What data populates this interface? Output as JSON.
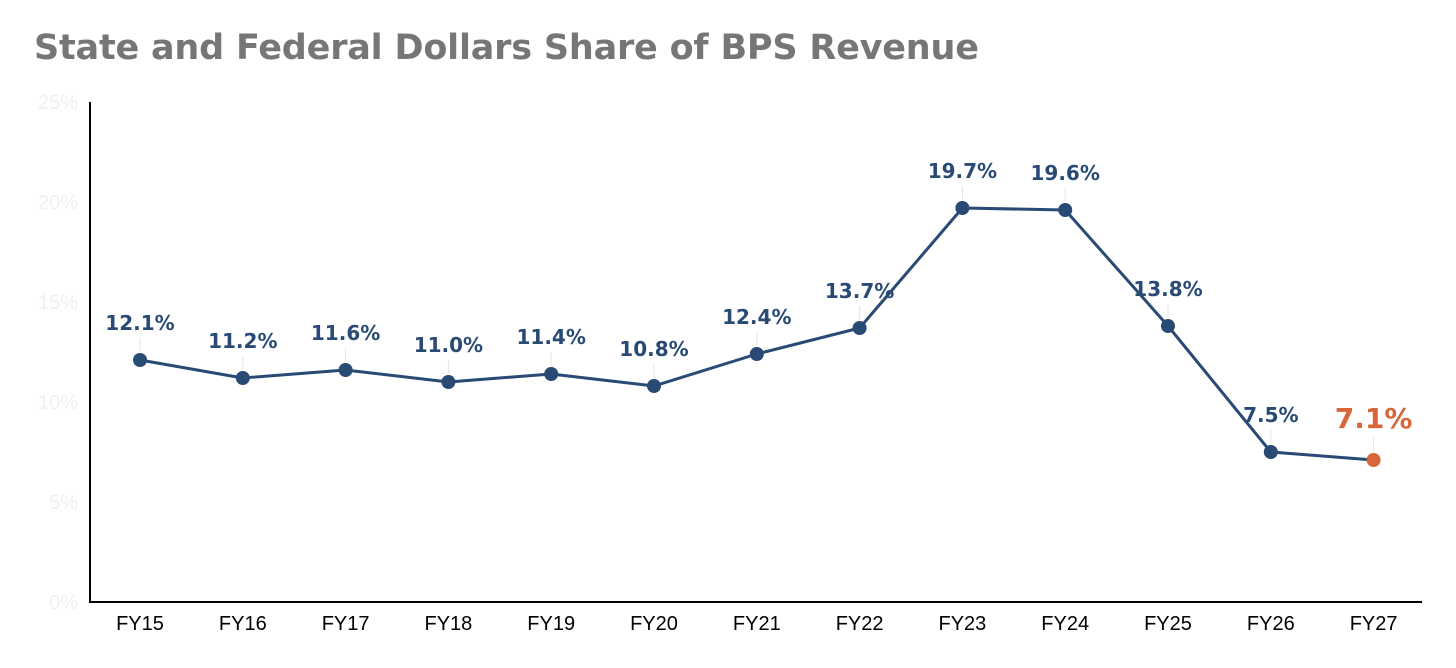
{
  "chart_data": {
    "type": "line",
    "title": "State and Federal Dollars Share of BPS Revenue",
    "xlabel": "",
    "ylabel": "",
    "categories": [
      "FY15",
      "FY16",
      "FY17",
      "FY18",
      "FY19",
      "FY20",
      "FY21",
      "FY22",
      "FY23",
      "FY24",
      "FY25",
      "FY26",
      "FY27"
    ],
    "series": [
      {
        "name": "State and Federal Dollars Share",
        "values": [
          12.1,
          11.2,
          11.6,
          11.0,
          11.4,
          10.8,
          12.4,
          13.7,
          19.7,
          19.6,
          13.8,
          7.5,
          7.1
        ],
        "labels": [
          "12.1%",
          "11.2%",
          "11.6%",
          "11.0%",
          "11.4%",
          "10.8%",
          "12.4%",
          "13.7%",
          "19.7%",
          "19.6%",
          "13.8%",
          "7.5%",
          "7.1%"
        ],
        "color": "#284a74"
      }
    ],
    "highlight_index": 12,
    "highlight_color": "#d8663a",
    "ylim": [
      0,
      25
    ],
    "yticks": [
      0,
      5,
      10,
      15,
      20,
      25
    ],
    "ytick_labels": [
      "0%",
      "5%",
      "10%",
      "15%",
      "20%",
      "25%"
    ],
    "grid": false,
    "legend": "none"
  }
}
